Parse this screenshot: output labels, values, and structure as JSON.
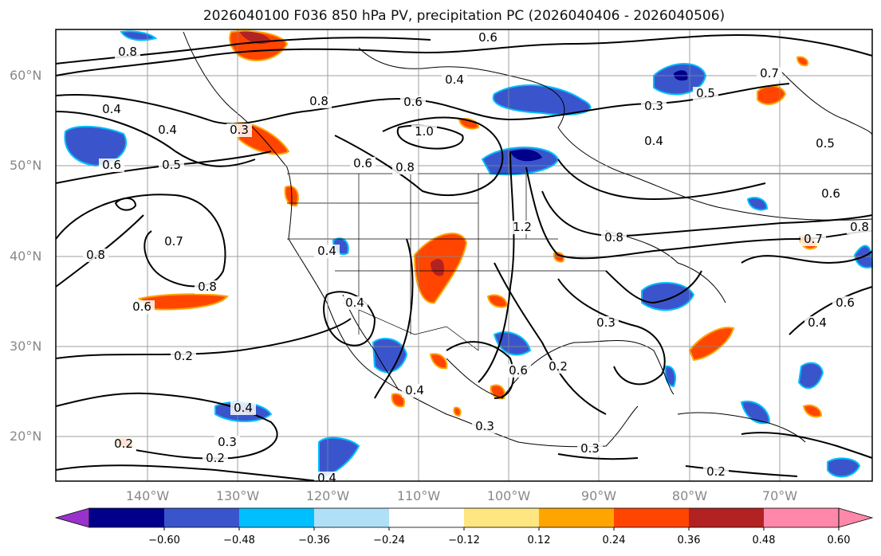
{
  "title": "2026040100 F036 850 hPa PV, precipitation PC (2026040406 - 2026040506)",
  "map": {
    "lat_labels": [
      "60°N",
      "50°N",
      "40°N",
      "30°N",
      "20°N"
    ],
    "lon_labels": [
      "140°W",
      "130°W",
      "120°W",
      "110°W",
      "100°W",
      "90°W",
      "80°W",
      "70°W"
    ],
    "contour_labels": [
      "0.6",
      "0.8",
      "0.4",
      "0.6",
      "0.8",
      "1.0",
      "0.3",
      "0.5",
      "0.4",
      "0.7",
      "0.4",
      "0.3",
      "0.5",
      "0.6",
      "0.6",
      "0.8",
      "0.4",
      "0.5",
      "0.7",
      "0.8",
      "0.6",
      "0.4",
      "1.2",
      "0.8",
      "0.7",
      "0.8",
      "0.6",
      "0.4",
      "0.4",
      "0.3",
      "0.2",
      "0.6",
      "0.4",
      "0.3",
      "0.2",
      "0.4",
      "0.3",
      "0.2",
      "0.2",
      "0.6",
      "0.4",
      "0.8",
      "0.3",
      "0.2"
    ],
    "land_color": "#000000",
    "grid_color": "#888888"
  },
  "colorbar": {
    "ticks": [
      "−0.60",
      "−0.48",
      "−0.36",
      "−0.24",
      "−0.12",
      "0.12",
      "0.24",
      "0.36",
      "0.48",
      "0.60"
    ],
    "colors": [
      "#9932cc",
      "#00008b",
      "#3a55cc",
      "#00bfff",
      "#b0e0f8",
      "#ffffff",
      "#ffe680",
      "#ffa500",
      "#ff4500",
      "#b22222",
      "#ff88aa",
      "#ff88aa"
    ]
  }
}
